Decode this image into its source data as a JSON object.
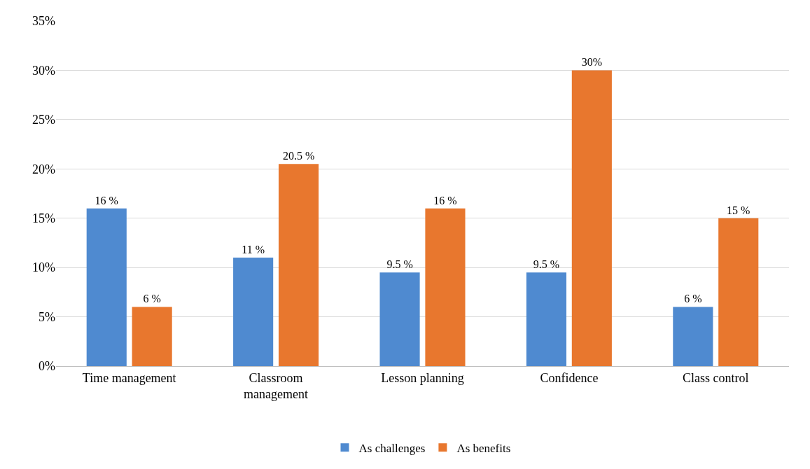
{
  "chart_data": {
    "type": "bar",
    "categories": [
      "Time management",
      "Classroom management",
      "Lesson planning",
      "Confidence",
      "Class control"
    ],
    "series": [
      {
        "name": "As challenges",
        "color": "#4f8ad0",
        "values": [
          16,
          11,
          9.5,
          9.5,
          6
        ],
        "value_labels": [
          "16 %",
          "11 %",
          "9.5 %",
          "9.5 %",
          "6 %"
        ]
      },
      {
        "name": "As benefits",
        "color": "#e8772e",
        "values": [
          6,
          20.5,
          16,
          30,
          15
        ],
        "value_labels": [
          "6 %",
          "20.5 %",
          "16 %",
          "30%",
          "15 %"
        ]
      }
    ],
    "ylim": [
      0,
      35
    ],
    "yticks": [
      {
        "value": 0,
        "label": "0%"
      },
      {
        "value": 5,
        "label": "5%"
      },
      {
        "value": 10,
        "label": "10%"
      },
      {
        "value": 15,
        "label": "15%"
      },
      {
        "value": 20,
        "label": "20%"
      },
      {
        "value": 25,
        "label": "25%"
      },
      {
        "value": 30,
        "label": "30%"
      },
      {
        "value": 35,
        "label": "35%"
      }
    ],
    "grid": "y",
    "legend": "bottom"
  }
}
